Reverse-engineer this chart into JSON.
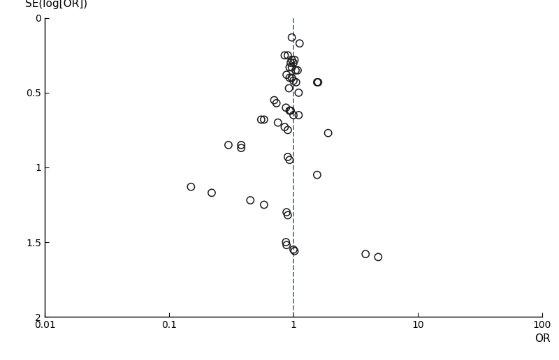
{
  "points": [
    [
      0.97,
      0.13
    ],
    [
      1.12,
      0.17
    ],
    [
      0.85,
      0.25
    ],
    [
      0.9,
      0.25
    ],
    [
      0.97,
      0.28
    ],
    [
      1.02,
      0.28
    ],
    [
      0.95,
      0.3
    ],
    [
      1.0,
      0.3
    ],
    [
      0.93,
      0.33
    ],
    [
      0.97,
      0.33
    ],
    [
      1.04,
      0.35
    ],
    [
      1.08,
      0.35
    ],
    [
      0.88,
      0.38
    ],
    [
      0.93,
      0.4
    ],
    [
      0.97,
      0.4
    ],
    [
      1.0,
      0.42
    ],
    [
      1.05,
      0.43
    ],
    [
      1.55,
      0.43
    ],
    [
      1.58,
      0.43
    ],
    [
      0.92,
      0.47
    ],
    [
      1.1,
      0.5
    ],
    [
      0.7,
      0.55
    ],
    [
      0.73,
      0.57
    ],
    [
      0.87,
      0.6
    ],
    [
      0.93,
      0.62
    ],
    [
      0.95,
      0.62
    ],
    [
      1.0,
      0.65
    ],
    [
      1.1,
      0.65
    ],
    [
      0.55,
      0.68
    ],
    [
      0.58,
      0.68
    ],
    [
      0.75,
      0.7
    ],
    [
      0.85,
      0.73
    ],
    [
      0.9,
      0.75
    ],
    [
      1.9,
      0.77
    ],
    [
      0.3,
      0.85
    ],
    [
      0.38,
      0.85
    ],
    [
      0.38,
      0.87
    ],
    [
      0.9,
      0.93
    ],
    [
      0.93,
      0.95
    ],
    [
      1.55,
      1.05
    ],
    [
      0.15,
      1.13
    ],
    [
      0.22,
      1.17
    ],
    [
      0.45,
      1.22
    ],
    [
      0.58,
      1.25
    ],
    [
      0.88,
      1.3
    ],
    [
      0.9,
      1.32
    ],
    [
      0.87,
      1.5
    ],
    [
      0.88,
      1.52
    ],
    [
      1.0,
      1.55
    ],
    [
      1.02,
      1.56
    ],
    [
      3.8,
      1.58
    ],
    [
      4.8,
      1.6
    ]
  ],
  "xlim": [
    0.01,
    100
  ],
  "ylim": [
    2.0,
    0.0
  ],
  "xticks": [
    0.01,
    0.1,
    1,
    10,
    100
  ],
  "yticks": [
    0,
    0.5,
    1.0,
    1.5,
    2.0
  ],
  "xlabel": "OR",
  "ylabel": "SE(log[OR])",
  "vline_x": 1.0,
  "vline_color": "#4472C4",
  "circle_edgecolor": "#1a1a1a",
  "circle_facecolor": "none",
  "circle_size": 55,
  "circle_linewidth": 1.1,
  "background_color": "#ffffff",
  "spine_color": "#000000",
  "tick_labelsize": 10,
  "label_fontsize": 11
}
